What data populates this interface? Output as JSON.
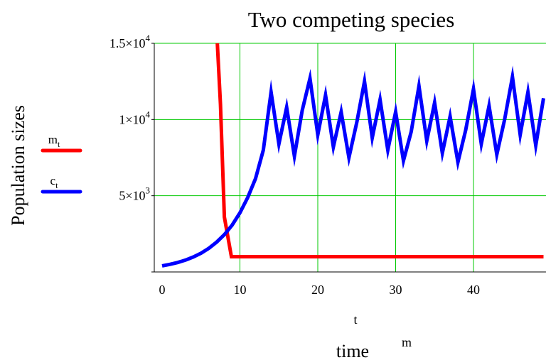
{
  "chart_data": {
    "type": "line",
    "title": "Two competing species",
    "xlabel": "t",
    "xlabel_secondary": "time",
    "xlabel_note": "m",
    "ylabel": "Population sizes",
    "xlim": [
      0,
      49
    ],
    "ylim": [
      0,
      15000
    ],
    "grid": true,
    "legend_position": "left",
    "x_ticks": [
      {
        "value": 0,
        "label": "0"
      },
      {
        "value": 10,
        "label": "10"
      },
      {
        "value": 20,
        "label": "20"
      },
      {
        "value": 30,
        "label": "30"
      },
      {
        "value": 40,
        "label": "40"
      }
    ],
    "y_ticks": [
      {
        "value": 5000,
        "mant": "5×10",
        "exp": "3"
      },
      {
        "value": 10000,
        "mant": "1×10",
        "exp": "4"
      },
      {
        "value": 15000,
        "mant": "1.5×10",
        "exp": "4"
      }
    ],
    "series": [
      {
        "name": "m",
        "sub": "t",
        "color": "#ff0000",
        "x": [
          7.1,
          7.5,
          8.0,
          8.9,
          49
        ],
        "y": [
          15000,
          11000,
          3600,
          1000,
          1000
        ]
      },
      {
        "name": "c",
        "sub": "t",
        "color": "#0000ff",
        "x": [
          0,
          1,
          2,
          3,
          4,
          5,
          6,
          7,
          8,
          9,
          10,
          11,
          12,
          13,
          14,
          15,
          16,
          17,
          18,
          19,
          20,
          21,
          22,
          23,
          24,
          25,
          26,
          27,
          28,
          29,
          30,
          31,
          32,
          33,
          34,
          35,
          36,
          37,
          38,
          39,
          40,
          41,
          42,
          43,
          44,
          45,
          46,
          47,
          48,
          49
        ],
        "y": [
          400,
          500,
          620,
          780,
          980,
          1230,
          1550,
          1950,
          2450,
          3080,
          3880,
          4880,
          6120,
          8000,
          11800,
          8400,
          10800,
          7600,
          10600,
          12700,
          9000,
          11600,
          8200,
          10500,
          7500,
          9800,
          12500,
          8800,
          11300,
          8000,
          10500,
          7300,
          9200,
          12200,
          8600,
          11100,
          7800,
          10200,
          7200,
          9300,
          12000,
          8400,
          10900,
          7700,
          10000,
          12800,
          9000,
          11800,
          8300,
          11400
        ]
      }
    ]
  }
}
